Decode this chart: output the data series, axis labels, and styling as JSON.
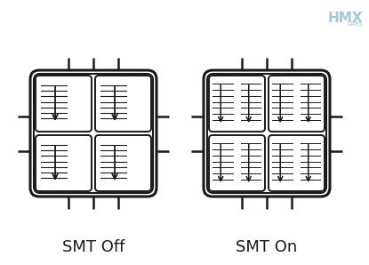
{
  "bg_color": "#ffffff",
  "line_color": "#1a1a1a",
  "label_smt_off": "SMT Off",
  "label_smt_on": "SMT On",
  "hmx_text": "HMX",
  "hmx_labs": "LABS",
  "hmx_color": "#a0c8d8",
  "label_fontsize": 13,
  "hmx_fontsize": 11,
  "hmx_labs_fontsize": 5
}
